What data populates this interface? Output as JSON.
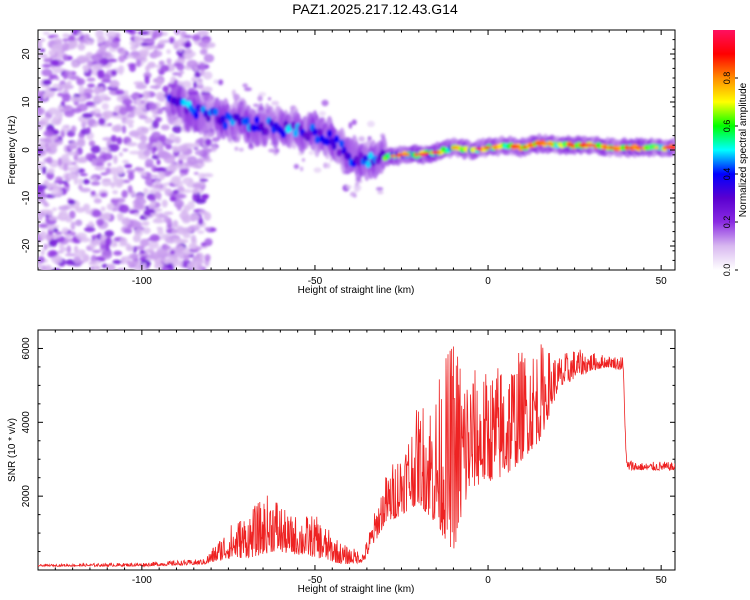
{
  "title": "PAZ1.2025.217.12.43.G14",
  "chart_data": [
    {
      "type": "heatmap",
      "title": "PAZ1.2025.217.12.43.G14",
      "xlabel": "Height of straight line (km)",
      "ylabel": "Frequency (Hz)",
      "xlim": [
        -130,
        54
      ],
      "ylim": [
        -25,
        25
      ],
      "xticks": [
        -100,
        -50,
        0,
        50
      ],
      "yticks": [
        20,
        10,
        0,
        -10,
        -20
      ],
      "colorbar": {
        "label": "Normalized spectral amplitude",
        "range": [
          0,
          1
        ],
        "ticks": [
          "0.0",
          "0.2",
          "0.4",
          "0.6",
          "0.8"
        ],
        "colormap": [
          "#ffffff",
          "#d8b8f0",
          "#8a2be2",
          "#5a00d0",
          "#0000ff",
          "#00ffff",
          "#00ff00",
          "#ffff00",
          "#ff8c00",
          "#ff0000",
          "#ff1060"
        ]
      },
      "ridge_frequency": {
        "x": [
          -90,
          -85,
          -80,
          -75,
          -70,
          -65,
          -60,
          -55,
          -50,
          -45,
          -40,
          -35,
          -30,
          -25,
          -20,
          -15,
          -10,
          -5,
          0,
          5,
          10,
          15,
          20,
          25,
          30,
          35,
          40,
          45,
          50
        ],
        "y": [
          10,
          8,
          7,
          6,
          5.5,
          5,
          4.5,
          4,
          3.5,
          2,
          -1.5,
          -2,
          -1.5,
          -1,
          -1,
          -0.5,
          0.5,
          0,
          0.5,
          1,
          0.5,
          1.5,
          1,
          1,
          1,
          0.5,
          0.5,
          0.5,
          0.5
        ]
      }
    },
    {
      "type": "line",
      "xlabel": "Height of straight line (km)",
      "ylabel": "SNR (10 * v/v)",
      "xlim": [
        -130,
        54
      ],
      "ylim": [
        0,
        6500
      ],
      "xticks": [
        -100,
        -50,
        0,
        50
      ],
      "yticks": [
        2000,
        4000,
        6000
      ],
      "color": "#ee2222",
      "envelope": {
        "x": [
          -130,
          -100,
          -82,
          -75,
          -68,
          -62,
          -58,
          -50,
          -42,
          -36,
          -30,
          -25,
          -20,
          -15,
          -10,
          -5,
          0,
          5,
          10,
          15,
          20,
          25,
          30,
          35,
          39,
          40,
          41,
          45,
          50,
          54
        ],
        "low": [
          100,
          100,
          150,
          300,
          350,
          500,
          450,
          350,
          150,
          200,
          1200,
          1500,
          1800,
          1200,
          500,
          2200,
          2400,
          2500,
          3000,
          3500,
          4800,
          5200,
          5400,
          5500,
          5400,
          2700,
          2700,
          2700,
          2700,
          2700
        ],
        "high": [
          150,
          200,
          300,
          1200,
          1700,
          2200,
          1500,
          1500,
          700,
          500,
          2500,
          3400,
          4500,
          5000,
          6500,
          5500,
          5400,
          5800,
          6000,
          6200,
          5800,
          6000,
          5900,
          5800,
          5800,
          3000,
          3000,
          2900,
          2950,
          2900
        ]
      }
    }
  ]
}
